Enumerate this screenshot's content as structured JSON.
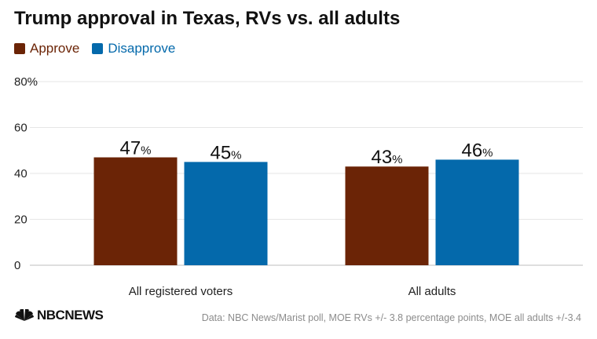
{
  "chart_data": {
    "type": "bar",
    "title": "Trump approval in Texas, RVs vs. all adults",
    "categories": [
      "All registered voters",
      "All adults"
    ],
    "series": [
      {
        "name": "Approve",
        "values": [
          47,
          43
        ],
        "color": "#6b2406"
      },
      {
        "name": "Disapprove",
        "values": [
          45,
          46
        ],
        "color": "#0469ab"
      }
    ],
    "ylim": [
      0,
      80
    ],
    "yticks": [
      "0",
      "20",
      "40",
      "60",
      "80%"
    ],
    "ytick_values": [
      0,
      20,
      40,
      60,
      80
    ],
    "value_suffix": "%",
    "xlabel": "",
    "ylabel": "",
    "grid": true,
    "legend_position": "top-left"
  },
  "source_note": "Data: NBC News/Marist poll, MOE RVs +/- 3.8 percentage points, MOE all adults +/-3.4",
  "brand": {
    "logo_text": "NBCNEWS",
    "logo_icon": "peacock-icon"
  }
}
